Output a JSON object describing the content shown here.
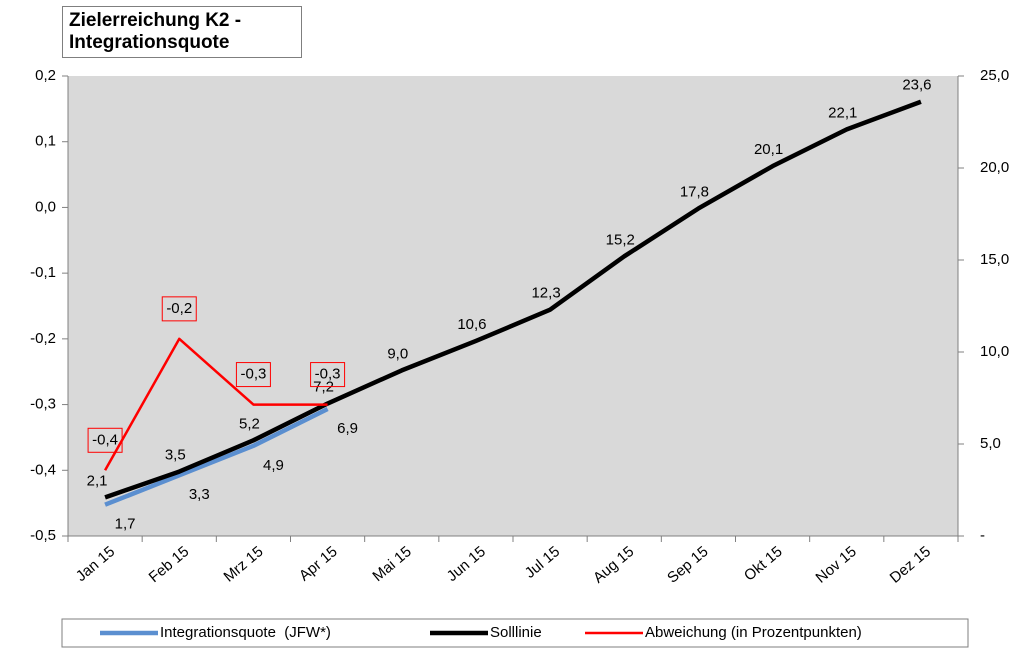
{
  "chart_data": {
    "type": "line",
    "title": "Zielerreichung K2 - Integrationsquote",
    "categories": [
      "Jan 15",
      "Feb 15",
      "Mrz 15",
      "Apr 15",
      "Mai 15",
      "Jun 15",
      "Jul 15",
      "Aug 15",
      "Sep 15",
      "Okt 15",
      "Nov 15",
      "Dez 15"
    ],
    "series": [
      {
        "name": "Integrationsquote  (JFW*)",
        "color": "#5b8fd0",
        "axis": "y2",
        "values": [
          1.7,
          3.3,
          4.9,
          6.9,
          null,
          null,
          null,
          null,
          null,
          null,
          null,
          null
        ],
        "value_labels": [
          "1,7",
          "3,3",
          "4,9",
          "6,9",
          null,
          null,
          null,
          null,
          null,
          null,
          null,
          null
        ]
      },
      {
        "name": "Solllinie",
        "color": "#000000",
        "axis": "y2",
        "values": [
          2.1,
          3.5,
          5.2,
          7.2,
          9.0,
          10.6,
          12.3,
          15.2,
          17.8,
          20.1,
          22.1,
          23.6
        ],
        "value_labels": [
          "2,1",
          "3,5",
          "5,2",
          "7,2",
          "9,0",
          "10,6",
          "12,3",
          "15,2",
          "17,8",
          "20,1",
          "22,1",
          "23,6"
        ]
      },
      {
        "name": "Abweichung (in Prozentpunkten)",
        "color": "#ff0000",
        "axis": "y",
        "values": [
          -0.4,
          -0.2,
          -0.3,
          -0.3,
          null,
          null,
          null,
          null,
          null,
          null,
          null,
          null
        ],
        "value_labels": [
          "-0,4",
          "-0,2",
          "-0,3",
          "-0,3",
          null,
          null,
          null,
          null,
          null,
          null,
          null,
          null
        ]
      }
    ],
    "ylim": [
      -0.5,
      0.2
    ],
    "yticks": [
      {
        "value": -0.5,
        "label": "-0,5"
      },
      {
        "value": -0.4,
        "label": "-0,4"
      },
      {
        "value": -0.3,
        "label": "-0,3"
      },
      {
        "value": -0.2,
        "label": "-0,2"
      },
      {
        "value": -0.1,
        "label": "-0,1"
      },
      {
        "value": 0,
        "label": "0,0"
      },
      {
        "value": 0.1,
        "label": "0,1"
      },
      {
        "value": 0.2,
        "label": "0,2"
      }
    ],
    "y2lim": [
      0,
      25
    ],
    "y2ticks": [
      {
        "value": 0,
        "label": "-"
      },
      {
        "value": 5,
        "label": "5,0"
      },
      {
        "value": 10,
        "label": "10,0"
      },
      {
        "value": 15,
        "label": "15,0"
      },
      {
        "value": 20,
        "label": "20,0"
      },
      {
        "value": 25,
        "label": "25,0"
      }
    ],
    "legend": "bottom"
  }
}
